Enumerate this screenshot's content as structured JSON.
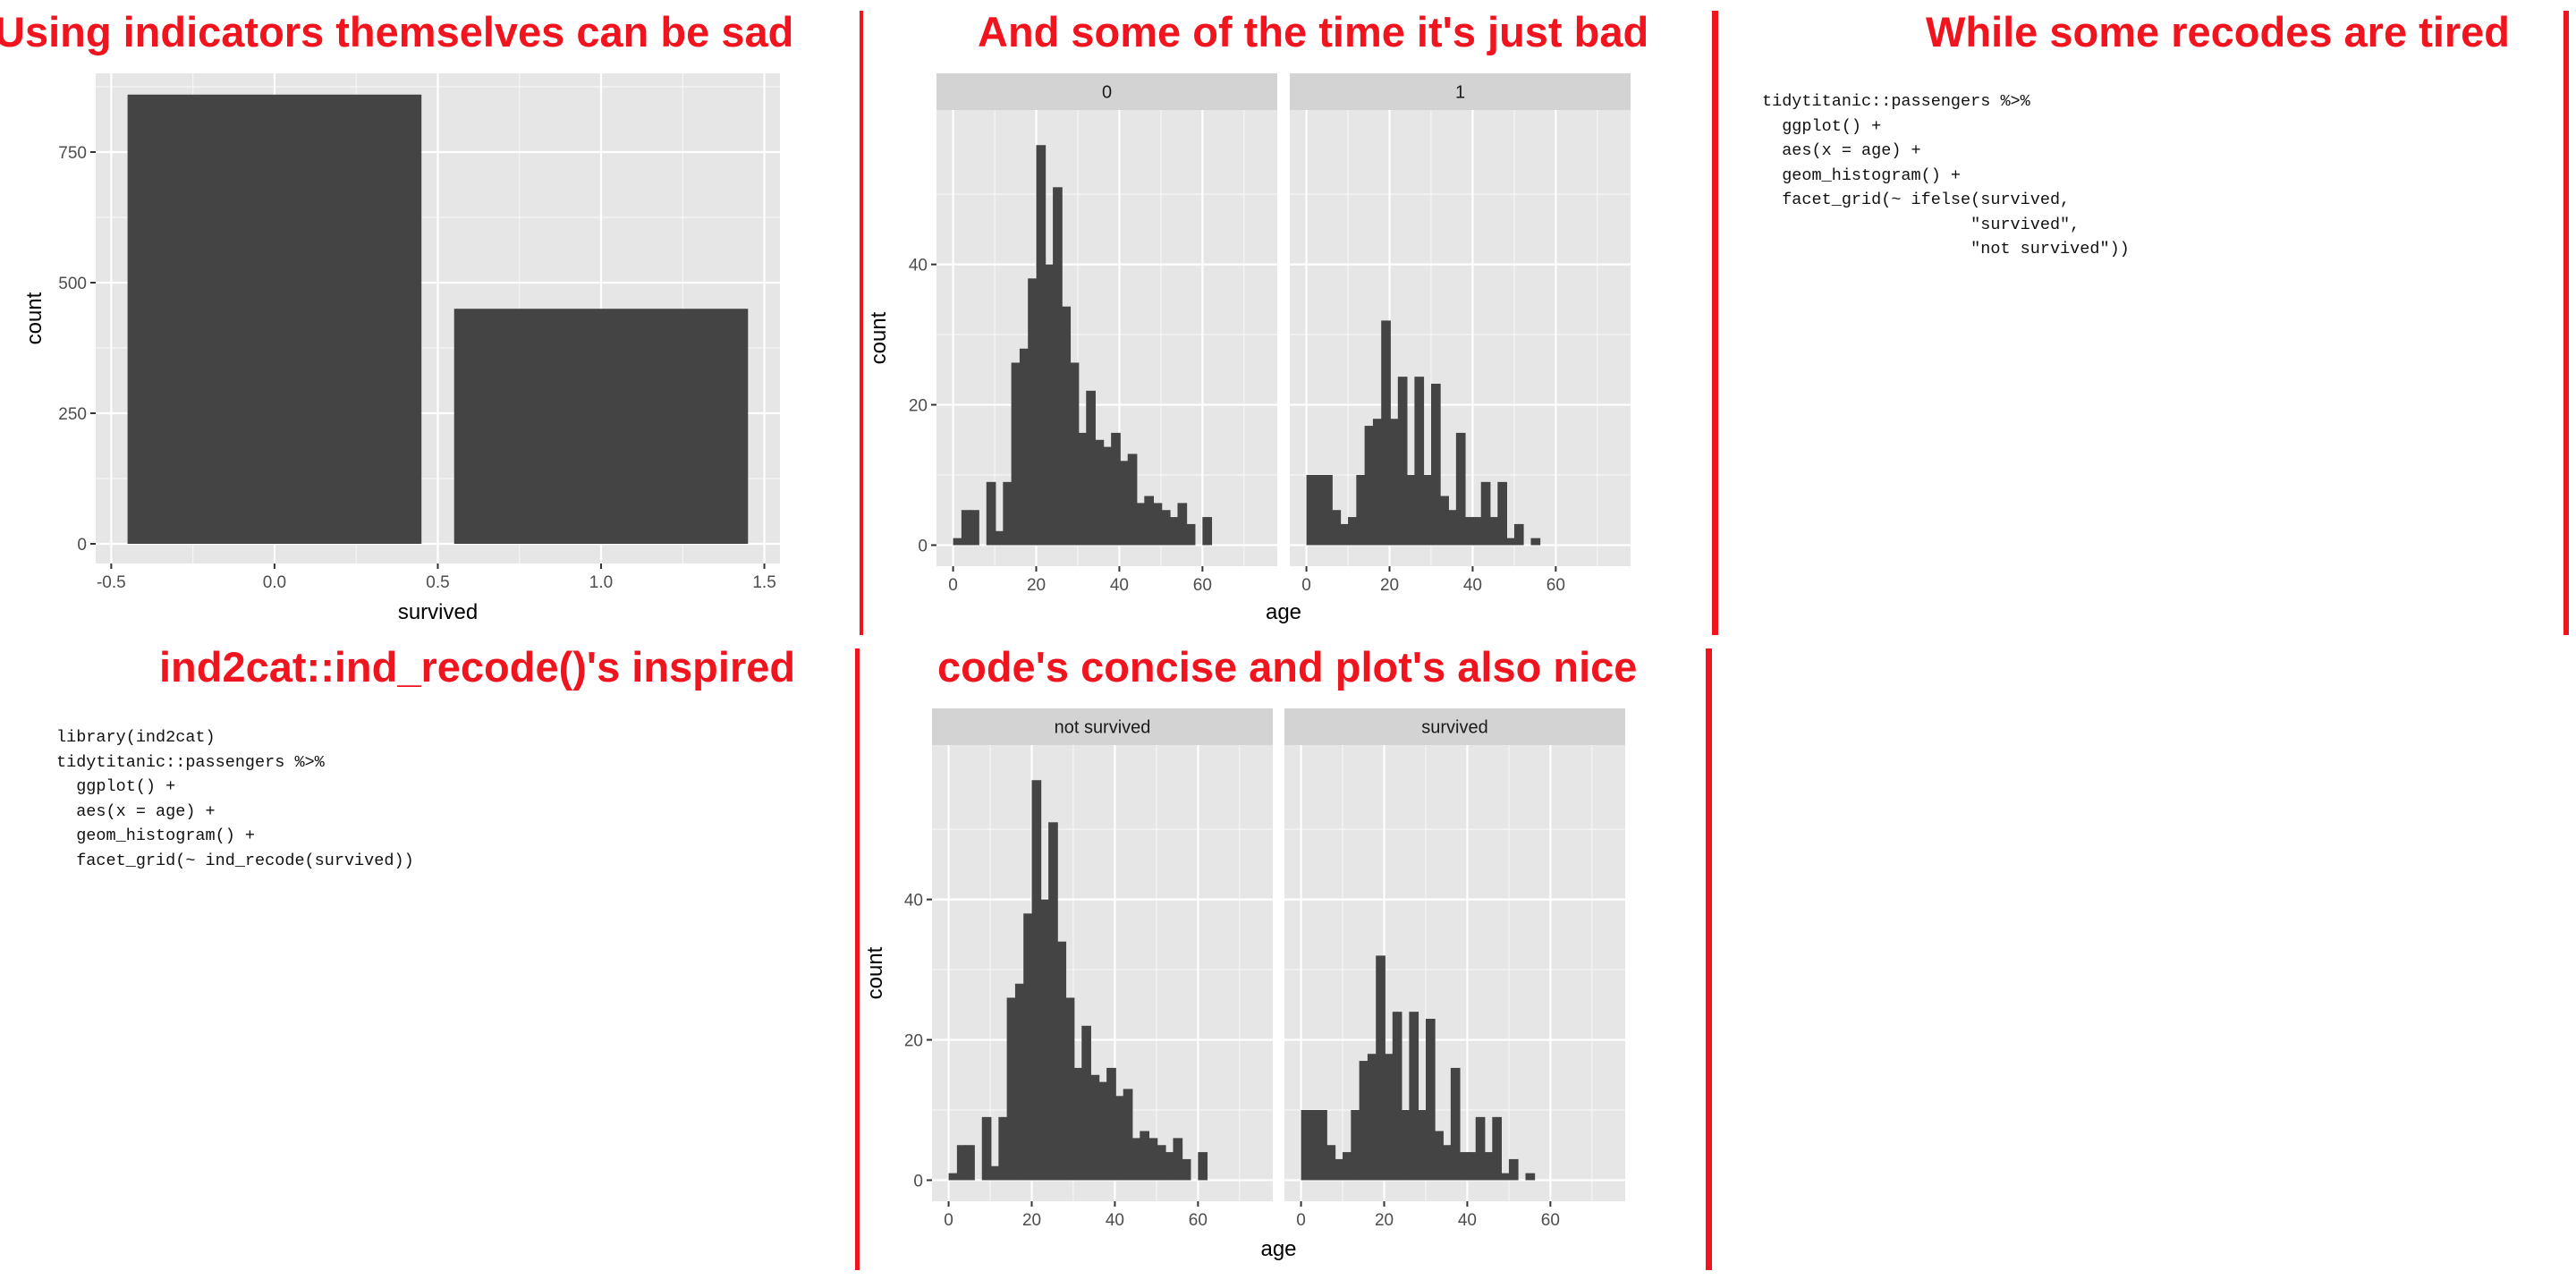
{
  "headings": {
    "slide1": "Using indicators themselves can be sad",
    "slide2": "And some of the time it's just bad",
    "slide3": "While some recodes are tired",
    "slide4": "ind2cat::ind_recode()'s inspired",
    "slide5": "code's concise and plot's also nice"
  },
  "code_blocks": {
    "tired": [
      "tidytitanic::passengers %>%",
      "  ggplot() +",
      "  aes(x = age) +",
      "  geom_histogram() +",
      "  facet_grid(~ ifelse(survived,",
      "                     \"survived\",",
      "                     \"not survived\"))"
    ],
    "inspired": [
      "library(ind2cat)",
      "tidytitanic::passengers %>%",
      "  ggplot() +",
      "  aes(x = age) +",
      "  geom_histogram() +",
      "  facet_grid(~ ind_recode(survived))"
    ]
  },
  "colors": {
    "accent": "#f0141e",
    "panel": "#e6e6e6",
    "strip": "#d3d3d3",
    "bar": "#444444",
    "grid_major": "#ffffff"
  },
  "chart_data": [
    {
      "type": "bar",
      "x": [
        0,
        1
      ],
      "values": [
        860,
        450
      ],
      "xlim": [
        -0.5,
        1.5
      ],
      "ylim": [
        0,
        900
      ],
      "x_ticks": [
        "-0.5",
        "0.0",
        "0.5",
        "1.0",
        "1.5"
      ],
      "y_ticks": [
        "0",
        "250",
        "500",
        "750"
      ],
      "xlabel": "survived",
      "ylabel": "count"
    },
    {
      "type": "bar",
      "subtype": "faceted histogram",
      "facets": [
        {
          "label": "0",
          "bins": [
            [
              0,
              1
            ],
            [
              2,
              5
            ],
            [
              4,
              5
            ],
            [
              8,
              9
            ],
            [
              10,
              2
            ],
            [
              12,
              9
            ],
            [
              14,
              26
            ],
            [
              16,
              28
            ],
            [
              18,
              38
            ],
            [
              20,
              57
            ],
            [
              22,
              40
            ],
            [
              24,
              51
            ],
            [
              26,
              34
            ],
            [
              28,
              26
            ],
            [
              30,
              16
            ],
            [
              32,
              22
            ],
            [
              34,
              15
            ],
            [
              36,
              14
            ],
            [
              38,
              16
            ],
            [
              40,
              12
            ],
            [
              42,
              13
            ],
            [
              44,
              6
            ],
            [
              46,
              7
            ],
            [
              48,
              6
            ],
            [
              50,
              5
            ],
            [
              52,
              4
            ],
            [
              54,
              6
            ],
            [
              56,
              3
            ],
            [
              60,
              4
            ]
          ]
        },
        {
          "label": "1",
          "bins": [
            [
              0,
              10
            ],
            [
              2,
              10
            ],
            [
              4,
              10
            ],
            [
              6,
              5
            ],
            [
              8,
              3
            ],
            [
              10,
              4
            ],
            [
              12,
              10
            ],
            [
              14,
              17
            ],
            [
              16,
              18
            ],
            [
              18,
              32
            ],
            [
              20,
              18
            ],
            [
              22,
              24
            ],
            [
              24,
              10
            ],
            [
              26,
              24
            ],
            [
              28,
              10
            ],
            [
              30,
              23
            ],
            [
              32,
              7
            ],
            [
              34,
              5
            ],
            [
              36,
              16
            ],
            [
              38,
              4
            ],
            [
              40,
              4
            ],
            [
              42,
              9
            ],
            [
              44,
              4
            ],
            [
              46,
              9
            ],
            [
              48,
              1
            ],
            [
              50,
              3
            ],
            [
              54,
              1
            ]
          ]
        }
      ],
      "xlim": [
        -4,
        78
      ],
      "ylim": [
        -3,
        62
      ],
      "x_ticks": [
        "0",
        "20",
        "40",
        "60"
      ],
      "y_ticks": [
        "0",
        "20",
        "40"
      ],
      "xlabel": "age",
      "ylabel": "count"
    },
    {
      "type": "bar",
      "subtype": "faceted histogram",
      "facets": [
        {
          "label": "not survived",
          "bins": [
            [
              0,
              1
            ],
            [
              2,
              5
            ],
            [
              4,
              5
            ],
            [
              8,
              9
            ],
            [
              10,
              2
            ],
            [
              12,
              9
            ],
            [
              14,
              26
            ],
            [
              16,
              28
            ],
            [
              18,
              38
            ],
            [
              20,
              57
            ],
            [
              22,
              40
            ],
            [
              24,
              51
            ],
            [
              26,
              34
            ],
            [
              28,
              26
            ],
            [
              30,
              16
            ],
            [
              32,
              22
            ],
            [
              34,
              15
            ],
            [
              36,
              14
            ],
            [
              38,
              16
            ],
            [
              40,
              12
            ],
            [
              42,
              13
            ],
            [
              44,
              6
            ],
            [
              46,
              7
            ],
            [
              48,
              6
            ],
            [
              50,
              5
            ],
            [
              52,
              4
            ],
            [
              54,
              6
            ],
            [
              56,
              3
            ],
            [
              60,
              4
            ]
          ]
        },
        {
          "label": "survived",
          "bins": [
            [
              0,
              10
            ],
            [
              2,
              10
            ],
            [
              4,
              10
            ],
            [
              6,
              5
            ],
            [
              8,
              3
            ],
            [
              10,
              4
            ],
            [
              12,
              10
            ],
            [
              14,
              17
            ],
            [
              16,
              18
            ],
            [
              18,
              32
            ],
            [
              20,
              18
            ],
            [
              22,
              24
            ],
            [
              24,
              10
            ],
            [
              26,
              24
            ],
            [
              28,
              10
            ],
            [
              30,
              23
            ],
            [
              32,
              7
            ],
            [
              34,
              5
            ],
            [
              36,
              16
            ],
            [
              38,
              4
            ],
            [
              40,
              4
            ],
            [
              42,
              9
            ],
            [
              44,
              4
            ],
            [
              46,
              9
            ],
            [
              48,
              1
            ],
            [
              50,
              3
            ],
            [
              54,
              1
            ]
          ]
        }
      ],
      "xlim": [
        -4,
        78
      ],
      "ylim": [
        -3,
        62
      ],
      "x_ticks": [
        "0",
        "20",
        "40",
        "60"
      ],
      "y_ticks": [
        "0",
        "20",
        "40"
      ],
      "xlabel": "age",
      "ylabel": "count"
    }
  ]
}
